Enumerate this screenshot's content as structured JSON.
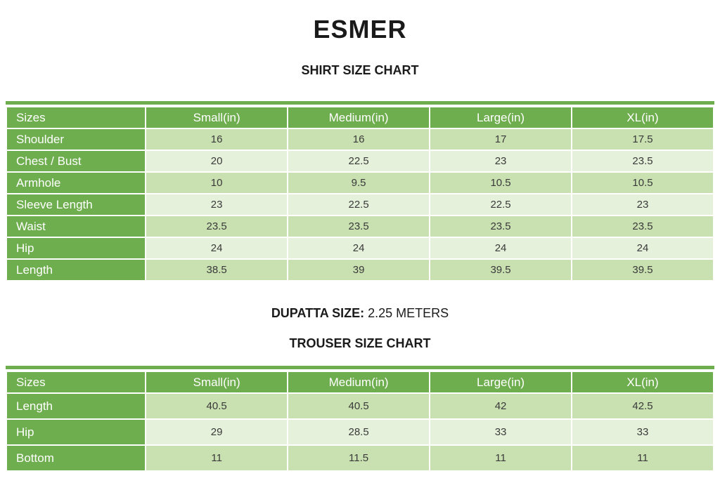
{
  "page": {
    "brand": "ESMER",
    "shirt_chart_title": "SHIRT SIZE CHART",
    "dupatta": {
      "label": "DUPATTA SIZE:",
      "value": " 2.25 METERS"
    },
    "trouser_chart_title": "TROUSER SIZE CHART"
  },
  "shirt_table": {
    "columns": [
      "Sizes",
      "Small(in)",
      "Medium(in)",
      "Large(in)",
      "XL(in)"
    ],
    "rows": [
      {
        "label": "Shoulder",
        "values": [
          "16",
          "16",
          "17",
          "17.5"
        ]
      },
      {
        "label": "Chest / Bust",
        "values": [
          "20",
          "22.5",
          "23",
          "23.5"
        ]
      },
      {
        "label": "Armhole",
        "values": [
          "10",
          "9.5",
          "10.5",
          "10.5"
        ]
      },
      {
        "label": "Sleeve Length",
        "values": [
          "23",
          "22.5",
          "22.5",
          "23"
        ]
      },
      {
        "label": "Waist",
        "values": [
          "23.5",
          "23.5",
          "23.5",
          "23.5"
        ]
      },
      {
        "label": "Hip",
        "values": [
          "24",
          "24",
          "24",
          "24"
        ]
      },
      {
        "label": "Length",
        "values": [
          "38.5",
          "39",
          "39.5",
          "39.5"
        ]
      }
    ]
  },
  "trouser_table": {
    "columns": [
      "Sizes",
      "Small(in)",
      "Medium(in)",
      "Large(in)",
      "XL(in)"
    ],
    "rows": [
      {
        "label": "Length",
        "values": [
          "40.5",
          "40.5",
          "42",
          "42.5"
        ]
      },
      {
        "label": "Hip",
        "values": [
          "29",
          "28.5",
          "33",
          "33"
        ]
      },
      {
        "label": "Bottom",
        "values": [
          "11",
          "11.5",
          "11",
          "11"
        ]
      }
    ]
  },
  "colors": {
    "header_green": "#6fae4f",
    "row_dark": "#c9e0b1",
    "row_light": "#e5f1da",
    "text_dark": "#3a3a3a"
  }
}
